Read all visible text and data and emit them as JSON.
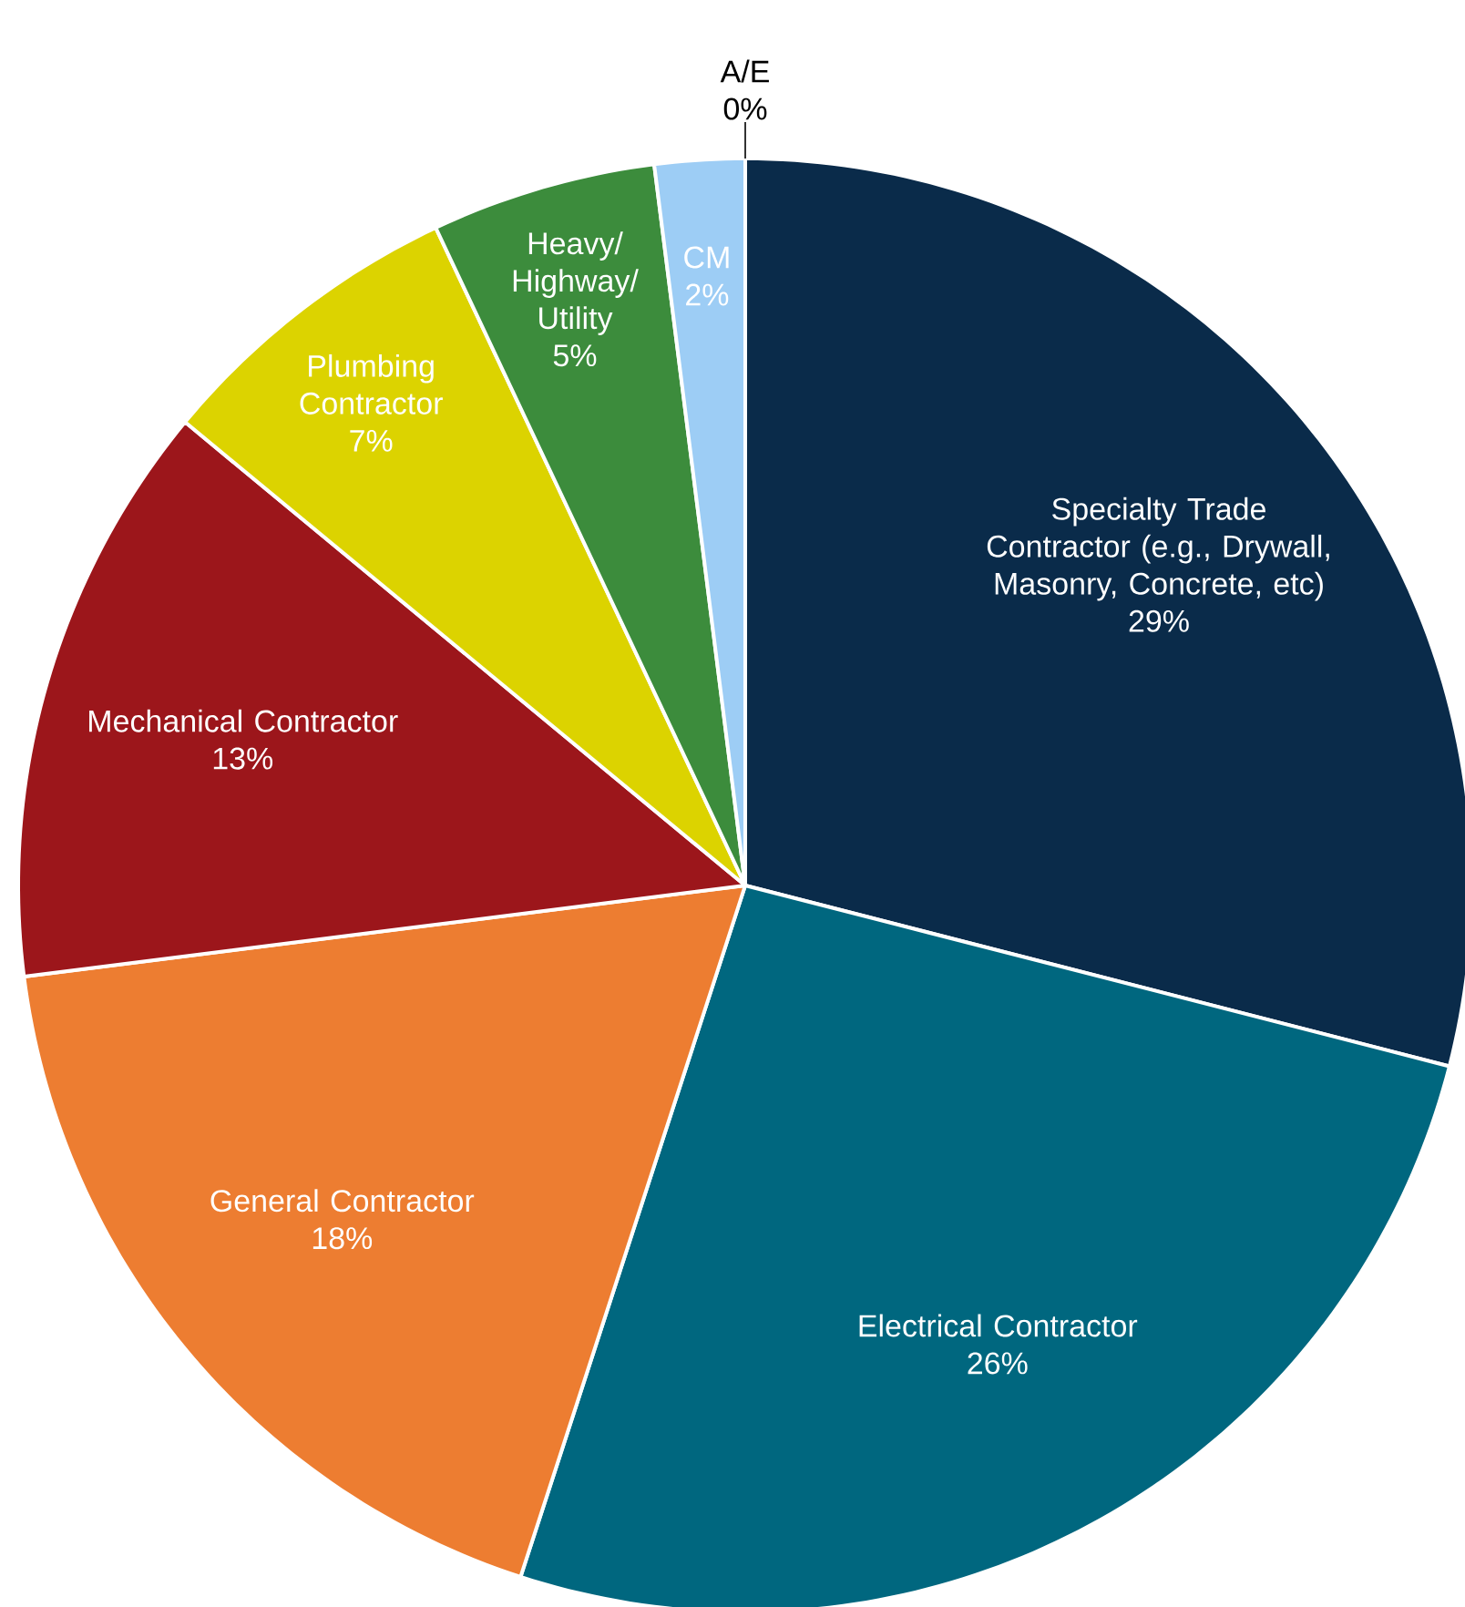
{
  "chart_data": {
    "type": "pie",
    "categories": [
      "Specialty Trade Contractor (e.g., Drywall, Masonry, Concrete, etc)",
      "Electrical Contractor",
      "General Contractor",
      "Mechanical Contractor",
      "Plumbing Contractor",
      "Heavy/ Highway/ Utility",
      "CM",
      "A/E"
    ],
    "values": [
      29,
      26,
      18,
      13,
      7,
      5,
      2,
      0
    ],
    "value_labels": [
      "29%",
      "26%",
      "18%",
      "13%",
      "7%",
      "5%",
      "2%",
      "0%"
    ],
    "colors": [
      "#0a2b4a",
      "#00677f",
      "#ed7d31",
      "#9c161b",
      "#dcd300",
      "#3c8c3c",
      "#9dcdf5",
      "#b0b0b0"
    ]
  }
}
